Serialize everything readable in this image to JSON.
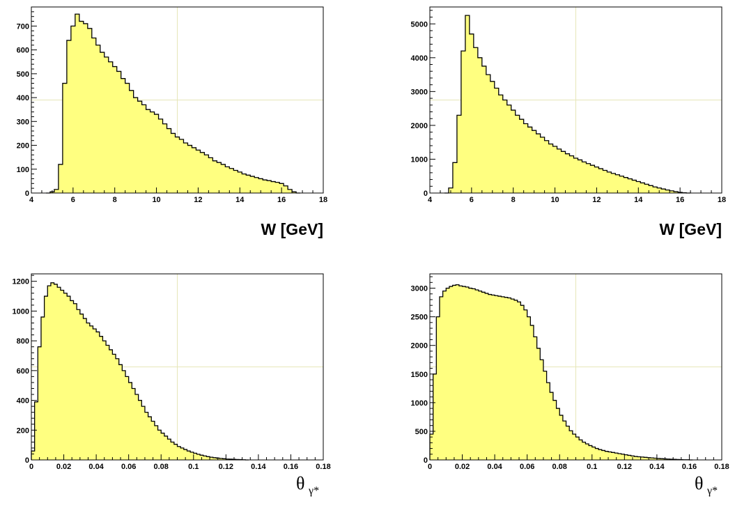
{
  "chart_data": [
    {
      "type": "area",
      "style": "histogram",
      "xlabel": "W [GeV]",
      "xlim": [
        4,
        18
      ],
      "ylim": [
        0,
        780
      ],
      "xticks": [
        4,
        6,
        8,
        10,
        12,
        14,
        16,
        18
      ],
      "yticks": [
        0,
        100,
        200,
        300,
        400,
        500,
        600,
        700
      ],
      "fill_color": "#ffff80",
      "line_color": "#000000",
      "series": [
        {
          "x": [
            4.8,
            5.0,
            5.2,
            5.4,
            5.6,
            5.8,
            6.0,
            6.2,
            6.4,
            6.6,
            6.8,
            7.0,
            7.2,
            7.4,
            7.6,
            7.8,
            8.0,
            8.2,
            8.4,
            8.6,
            8.8,
            9.0,
            9.2,
            9.4,
            9.6,
            9.8,
            10.0,
            10.2,
            10.4,
            10.6,
            10.8,
            11.0,
            11.2,
            11.4,
            11.6,
            11.8,
            12.0,
            12.2,
            12.4,
            12.6,
            12.8,
            13.0,
            13.2,
            13.4,
            13.6,
            13.8,
            14.0,
            14.2,
            14.4,
            14.6,
            14.8,
            15.0,
            15.2,
            15.4,
            15.6,
            15.8,
            16.0,
            16.2,
            16.4,
            16.6,
            16.8
          ],
          "values": [
            0,
            5,
            15,
            120,
            460,
            640,
            700,
            750,
            720,
            710,
            690,
            650,
            620,
            590,
            570,
            550,
            530,
            510,
            480,
            460,
            430,
            400,
            385,
            370,
            350,
            340,
            330,
            310,
            290,
            270,
            250,
            235,
            225,
            210,
            200,
            190,
            180,
            170,
            160,
            148,
            135,
            128,
            120,
            110,
            103,
            95,
            88,
            80,
            75,
            70,
            65,
            60,
            55,
            52,
            48,
            45,
            40,
            30,
            15,
            5,
            0
          ]
        }
      ]
    },
    {
      "type": "area",
      "style": "histogram",
      "xlabel": "W [GeV]",
      "xlim": [
        4,
        18
      ],
      "ylim": [
        0,
        5500
      ],
      "xticks": [
        4,
        6,
        8,
        10,
        12,
        14,
        16,
        18
      ],
      "yticks": [
        0,
        1000,
        2000,
        3000,
        4000,
        5000
      ],
      "fill_color": "#ffff80",
      "line_color": "#000000",
      "series": [
        {
          "x": [
            4.8,
            5.0,
            5.2,
            5.4,
            5.6,
            5.8,
            6.0,
            6.2,
            6.4,
            6.6,
            6.8,
            7.0,
            7.2,
            7.4,
            7.6,
            7.8,
            8.0,
            8.2,
            8.4,
            8.6,
            8.8,
            9.0,
            9.2,
            9.4,
            9.6,
            9.8,
            10.0,
            10.2,
            10.4,
            10.6,
            10.8,
            11.0,
            11.2,
            11.4,
            11.6,
            11.8,
            12.0,
            12.2,
            12.4,
            12.6,
            12.8,
            13.0,
            13.2,
            13.4,
            13.6,
            13.8,
            14.0,
            14.2,
            14.4,
            14.6,
            14.8,
            15.0,
            15.2,
            15.4,
            15.6,
            15.8,
            16.0,
            16.2,
            16.4
          ],
          "values": [
            0,
            150,
            900,
            2300,
            4200,
            5250,
            4700,
            4300,
            4000,
            3750,
            3500,
            3300,
            3100,
            2900,
            2750,
            2600,
            2450,
            2300,
            2180,
            2050,
            1950,
            1850,
            1750,
            1650,
            1550,
            1450,
            1380,
            1300,
            1230,
            1160,
            1100,
            1030,
            980,
            920,
            870,
            820,
            770,
            720,
            670,
            620,
            580,
            540,
            500,
            460,
            420,
            380,
            340,
            300,
            260,
            220,
            180,
            150,
            120,
            90,
            65,
            40,
            20,
            8,
            0
          ]
        }
      ]
    },
    {
      "type": "area",
      "style": "histogram",
      "xlabel_symbol": "θ",
      "xlabel_subscript": "γ*",
      "xlim": [
        0,
        0.18
      ],
      "ylim": [
        0,
        1250
      ],
      "xticks": [
        "0",
        "0.02",
        "0.04",
        "0.06",
        "0.08",
        "0.1",
        "0.12",
        "0.14",
        "0.16",
        "0.18"
      ],
      "yticks": [
        0,
        200,
        400,
        600,
        800,
        1000,
        1200
      ],
      "fill_color": "#ffff80",
      "line_color": "#000000",
      "series": [
        {
          "x": [
            0.001,
            0.003,
            0.005,
            0.007,
            0.009,
            0.011,
            0.013,
            0.015,
            0.017,
            0.019,
            0.021,
            0.023,
            0.025,
            0.027,
            0.029,
            0.031,
            0.033,
            0.035,
            0.037,
            0.039,
            0.041,
            0.043,
            0.045,
            0.047,
            0.049,
            0.051,
            0.053,
            0.055,
            0.057,
            0.059,
            0.061,
            0.063,
            0.065,
            0.067,
            0.069,
            0.071,
            0.073,
            0.075,
            0.077,
            0.079,
            0.081,
            0.083,
            0.085,
            0.087,
            0.089,
            0.091,
            0.093,
            0.095,
            0.097,
            0.099,
            0.101,
            0.103,
            0.105,
            0.107,
            0.109,
            0.111,
            0.113,
            0.115,
            0.117,
            0.119,
            0.121,
            0.123,
            0.125,
            0.127,
            0.129,
            0.131,
            0.133
          ],
          "values": [
            60,
            390,
            760,
            960,
            1100,
            1170,
            1190,
            1180,
            1160,
            1140,
            1120,
            1100,
            1070,
            1050,
            1010,
            980,
            950,
            920,
            900,
            880,
            860,
            830,
            800,
            770,
            740,
            710,
            680,
            640,
            600,
            560,
            520,
            480,
            440,
            400,
            360,
            320,
            290,
            260,
            230,
            200,
            180,
            160,
            140,
            120,
            105,
            90,
            80,
            70,
            60,
            52,
            45,
            38,
            32,
            27,
            22,
            18,
            15,
            12,
            10,
            8,
            6,
            5,
            4,
            3,
            2,
            1,
            0
          ]
        }
      ]
    },
    {
      "type": "area",
      "style": "histogram",
      "xlabel_symbol": "θ",
      "xlabel_subscript": "γ*",
      "xlim": [
        0,
        0.18
      ],
      "ylim": [
        0,
        3250
      ],
      "xticks": [
        "0",
        "0.02",
        "0.04",
        "0.06",
        "0.08",
        "0.1",
        "0.12",
        "0.14",
        "0.16",
        "0.18"
      ],
      "yticks": [
        0,
        500,
        1000,
        1500,
        2000,
        2500,
        3000
      ],
      "fill_color": "#ffff80",
      "line_color": "#000000",
      "series": [
        {
          "x": [
            0.001,
            0.003,
            0.005,
            0.007,
            0.009,
            0.011,
            0.013,
            0.015,
            0.017,
            0.019,
            0.021,
            0.023,
            0.025,
            0.027,
            0.029,
            0.031,
            0.033,
            0.035,
            0.037,
            0.039,
            0.041,
            0.043,
            0.045,
            0.047,
            0.049,
            0.051,
            0.053,
            0.055,
            0.057,
            0.059,
            0.061,
            0.063,
            0.065,
            0.067,
            0.069,
            0.071,
            0.073,
            0.075,
            0.077,
            0.079,
            0.081,
            0.083,
            0.085,
            0.087,
            0.089,
            0.091,
            0.093,
            0.095,
            0.097,
            0.099,
            0.101,
            0.103,
            0.105,
            0.107,
            0.109,
            0.111,
            0.113,
            0.115,
            0.117,
            0.119,
            0.121,
            0.123,
            0.125,
            0.127,
            0.129,
            0.131,
            0.133,
            0.135,
            0.137,
            0.139,
            0.141,
            0.143,
            0.145,
            0.147,
            0.149,
            0.151,
            0.153,
            0.155,
            0.157,
            0.159,
            0.161
          ],
          "values": [
            450,
            1500,
            2500,
            2850,
            2950,
            3000,
            3030,
            3050,
            3060,
            3040,
            3030,
            3020,
            3000,
            2990,
            2970,
            2950,
            2930,
            2910,
            2890,
            2880,
            2870,
            2860,
            2850,
            2840,
            2830,
            2810,
            2790,
            2760,
            2700,
            2620,
            2500,
            2350,
            2150,
            1950,
            1750,
            1550,
            1350,
            1180,
            1040,
            900,
            780,
            680,
            590,
            510,
            450,
            400,
            350,
            310,
            280,
            250,
            225,
            200,
            180,
            165,
            150,
            140,
            130,
            120,
            110,
            100,
            90,
            80,
            70,
            60,
            55,
            50,
            45,
            40,
            35,
            30,
            25,
            22,
            18,
            15,
            12,
            10,
            8,
            5,
            3,
            2,
            0
          ]
        }
      ]
    }
  ]
}
